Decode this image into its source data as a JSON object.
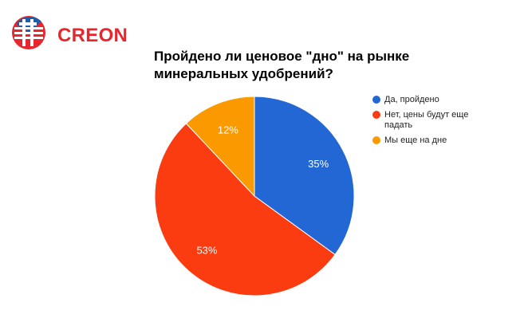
{
  "brand": {
    "name": "CREON"
  },
  "colors": {
    "brand_red": "#e8262d",
    "brand_blue": "#1f5ea8",
    "slice_1": "#2367d4",
    "slice_2": "#fb3c10",
    "slice_3": "#fb9a00"
  },
  "chart_data": {
    "type": "pie",
    "title_lines": [
      "Пройдено ли ценовое \"дно\" на рынке",
      "минеральных удобрений?"
    ],
    "categories": [
      "Да, пройдено",
      "Нет, цены будут еще падать",
      "Мы еще на дне"
    ],
    "legend_lines": [
      [
        "Да, пройдено"
      ],
      [
        "Нет, цены будут еще",
        "падать"
      ],
      [
        "Мы еще на дне"
      ]
    ],
    "values": [
      35,
      53,
      12
    ],
    "labels": [
      "35%",
      "53%",
      "12%"
    ],
    "colors": [
      "#2367d4",
      "#fb3c10",
      "#fb9a00"
    ],
    "legend_position": "right",
    "start_angle_deg": 0,
    "direction": "clockwise"
  }
}
